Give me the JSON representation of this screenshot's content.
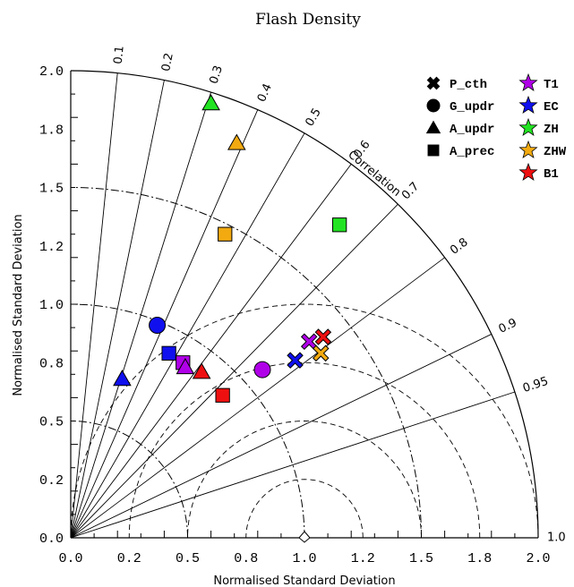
{
  "chart_data": {
    "type": "scatter",
    "subtype": "taylor-diagram",
    "title": "Flash Density",
    "xlabel": "Normalised Standard Deviation",
    "ylabel": "Normalised Standard Deviation",
    "arc_label": "Correlation",
    "xlim": [
      0,
      2
    ],
    "ylim": [
      0,
      2
    ],
    "x_ticks": [
      "0.0",
      "0.2",
      "0.5",
      "0.8",
      "1.0",
      "1.2",
      "1.5",
      "1.8",
      "2.0"
    ],
    "y_ticks": [
      "0.0",
      "0.2",
      "0.5",
      "0.8",
      "1.0",
      "1.2",
      "1.5",
      "1.8",
      "2.0"
    ],
    "correlation_ticks": [
      "0.1",
      "0.2",
      "0.3",
      "0.4",
      "0.5",
      "0.6",
      "0.7",
      "0.8",
      "0.9",
      "0.95",
      "1.0"
    ],
    "correlation_values": [
      0.1,
      0.2,
      0.3,
      0.4,
      0.5,
      0.6,
      0.7,
      0.8,
      0.9,
      0.95,
      1.0
    ],
    "std_arcs": [
      0.5,
      1.0,
      1.5
    ],
    "rms_arcs": [
      0.25,
      0.5,
      0.75,
      1.0
    ],
    "reference_point": {
      "x": 1.0,
      "y": 0.0
    },
    "legend_position": "top-right",
    "markers": [
      {
        "name": "P_cth",
        "shape": "x"
      },
      {
        "name": "G_updr",
        "shape": "circle"
      },
      {
        "name": "A_updr",
        "shape": "triangle"
      },
      {
        "name": "A_prec",
        "shape": "square"
      }
    ],
    "colors": [
      {
        "name": "T1",
        "color": "#b000e8"
      },
      {
        "name": "EC",
        "color": "#1010ee"
      },
      {
        "name": "ZH",
        "color": "#22e322"
      },
      {
        "name": "ZHW",
        "color": "#f2aa10"
      },
      {
        "name": "B1",
        "color": "#ee1010"
      }
    ],
    "points": [
      {
        "marker": "circle",
        "color": "EC",
        "x": 0.37,
        "y": 0.91
      },
      {
        "marker": "square",
        "color": "EC",
        "x": 0.42,
        "y": 0.79
      },
      {
        "marker": "triangle",
        "color": "EC",
        "x": 0.22,
        "y": 0.68
      },
      {
        "marker": "x",
        "color": "EC",
        "x": 0.96,
        "y": 0.76
      },
      {
        "marker": "square",
        "color": "T1",
        "x": 0.48,
        "y": 0.75
      },
      {
        "marker": "triangle",
        "color": "T1",
        "x": 0.49,
        "y": 0.73
      },
      {
        "marker": "circle",
        "color": "T1",
        "x": 0.82,
        "y": 0.72
      },
      {
        "marker": "x",
        "color": "T1",
        "x": 1.02,
        "y": 0.84
      },
      {
        "marker": "triangle",
        "color": "B1",
        "x": 0.56,
        "y": 0.71
      },
      {
        "marker": "square",
        "color": "B1",
        "x": 0.65,
        "y": 0.61
      },
      {
        "marker": "x",
        "color": "B1",
        "x": 1.08,
        "y": 0.86
      },
      {
        "marker": "x",
        "color": "ZHW",
        "x": 1.07,
        "y": 0.79
      },
      {
        "marker": "square",
        "color": "ZHW",
        "x": 0.66,
        "y": 1.3
      },
      {
        "marker": "triangle",
        "color": "ZHW",
        "x": 0.71,
        "y": 1.69
      },
      {
        "marker": "triangle",
        "color": "ZH",
        "x": 0.6,
        "y": 1.86
      },
      {
        "marker": "square",
        "color": "ZH",
        "x": 1.15,
        "y": 1.34
      }
    ]
  }
}
